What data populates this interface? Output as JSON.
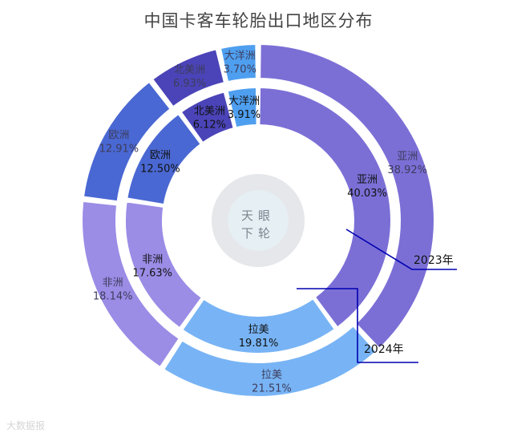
{
  "chart_data": {
    "type": "pie",
    "title": "中国卡客车轮胎出口地区分布",
    "series": [
      {
        "name": "2024年",
        "ring": "outer",
        "slices": [
          {
            "name": "亚洲",
            "value": 38.92,
            "label": "38.92%"
          },
          {
            "name": "拉美",
            "value": 21.51,
            "label": "21.51%"
          },
          {
            "name": "非洲",
            "value": 18.14,
            "label": "18.14%"
          },
          {
            "name": "欧洲",
            "value": 12.91,
            "label": "12.91%"
          },
          {
            "name": "北美洲",
            "value": 6.93,
            "label": "6.93%"
          },
          {
            "name": "大洋洲",
            "value": 3.7,
            "label": "3.70%"
          }
        ]
      },
      {
        "name": "2023年",
        "ring": "inner",
        "slices": [
          {
            "name": "亚洲",
            "value": 40.03,
            "label": "40.03%"
          },
          {
            "name": "拉美",
            "value": 19.81,
            "label": "19.81%"
          },
          {
            "name": "非洲",
            "value": 17.63,
            "label": "17.63%"
          },
          {
            "name": "欧洲",
            "value": 12.5,
            "label": "12.50%"
          },
          {
            "name": "北美洲",
            "value": 6.12,
            "label": "6.12%"
          },
          {
            "name": "大洋洲",
            "value": 3.91,
            "label": "3.91%"
          }
        ]
      }
    ],
    "colors": {
      "亚洲": "#7b6fd6",
      "拉美": "#78b4f5",
      "非洲": "#9b8ce6",
      "欧洲": "#4a68d3",
      "北美洲": "#4b44b8",
      "大洋洲": "#4f9ff0"
    },
    "callout_line_color": "#0000b0",
    "watermark": "天眼下轮",
    "source": "大数据报"
  }
}
